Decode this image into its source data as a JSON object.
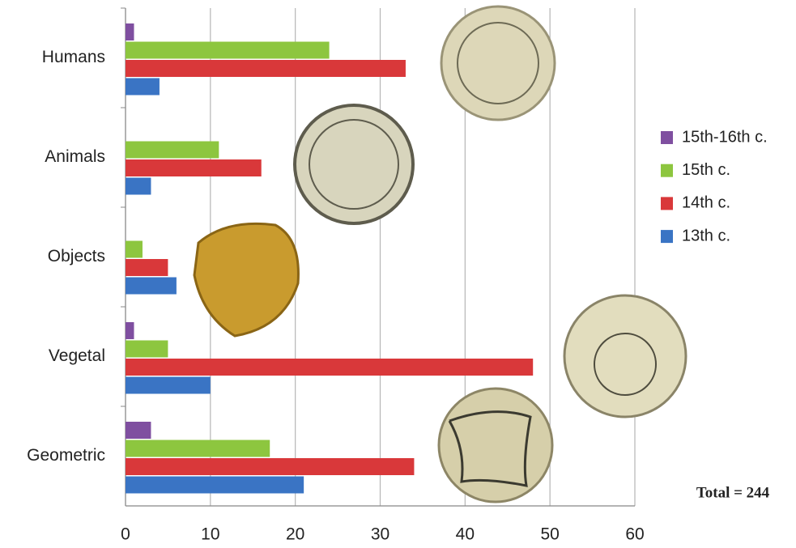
{
  "chart_data": {
    "type": "bar",
    "orientation": "horizontal",
    "categories": [
      "Humans",
      "Animals",
      "Objects",
      "Vegetal",
      "Geometric"
    ],
    "series": [
      {
        "name": "15th-16th c.",
        "color": "#7f4fa0",
        "values": [
          1,
          0,
          0,
          1,
          3
        ]
      },
      {
        "name": "15th c.",
        "color": "#8dc63f",
        "values": [
          24,
          11,
          2,
          5,
          17
        ]
      },
      {
        "name": "14th c.",
        "color": "#d9383a",
        "values": [
          33,
          16,
          5,
          48,
          34
        ]
      },
      {
        "name": "13th c.",
        "color": "#3a74c4",
        "values": [
          4,
          3,
          6,
          10,
          21
        ]
      }
    ],
    "xlim": [
      0,
      60
    ],
    "xticks": [
      0,
      10,
      20,
      30,
      40,
      50,
      60
    ],
    "grid": true,
    "legend": "right",
    "annotation": "Total = 244"
  }
}
